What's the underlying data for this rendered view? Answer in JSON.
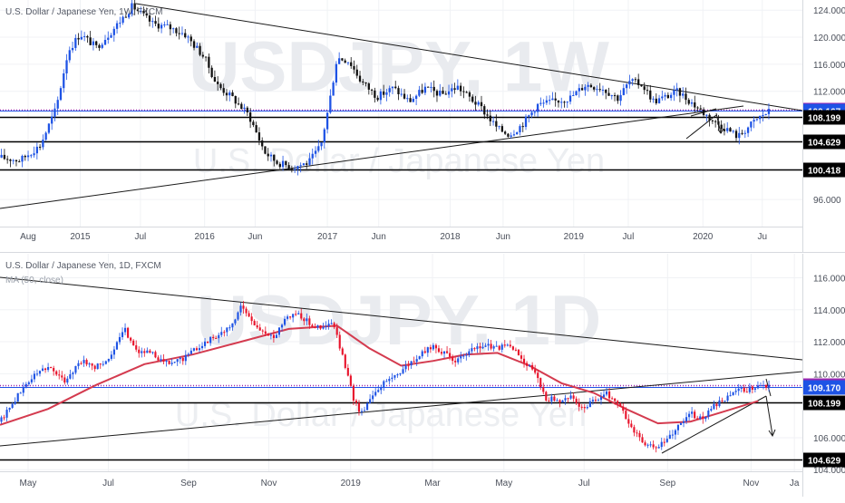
{
  "chart_data": [
    {
      "type": "candlestick",
      "title": "U.S. Dollar / Japanese Yen, 1W, FXCM",
      "watermark_symbol": "USDJPY, 1W",
      "watermark_name": "U.S. Dollar / Japanese Yen",
      "ylim": [
        92,
        125.5
      ],
      "yticks": [
        "124.000",
        "120.000",
        "116.000",
        "112.000",
        "104.629",
        "100.418",
        "96.000"
      ],
      "xticks": [
        "Aug",
        "2015",
        "Jul",
        "2016",
        "Jun",
        "2017",
        "Jun",
        "2018",
        "Jun",
        "2019",
        "Jul",
        "2020",
        "Ju"
      ],
      "price_path": [
        [
          0,
          102.2
        ],
        [
          0.025,
          101.8
        ],
        [
          0.05,
          104.0
        ],
        [
          0.07,
          109.5
        ],
        [
          0.085,
          118.0
        ],
        [
          0.1,
          120.5
        ],
        [
          0.12,
          118.5
        ],
        [
          0.14,
          121.0
        ],
        [
          0.165,
          124.6
        ],
        [
          0.19,
          122.0
        ],
        [
          0.21,
          121.5
        ],
        [
          0.23,
          120.5
        ],
        [
          0.255,
          117.0
        ],
        [
          0.27,
          113.0
        ],
        [
          0.29,
          111.0
        ],
        [
          0.31,
          108.5
        ],
        [
          0.33,
          103.0
        ],
        [
          0.345,
          101.5
        ],
        [
          0.365,
          100.8
        ],
        [
          0.385,
          101.5
        ],
        [
          0.4,
          104.0
        ],
        [
          0.41,
          110.0
        ],
        [
          0.42,
          117.0
        ],
        [
          0.435,
          116.5
        ],
        [
          0.45,
          113.5
        ],
        [
          0.47,
          111.2
        ],
        [
          0.49,
          112.5
        ],
        [
          0.51,
          110.5
        ],
        [
          0.53,
          112.5
        ],
        [
          0.55,
          111.5
        ],
        [
          0.57,
          112.7
        ],
        [
          0.6,
          109.5
        ],
        [
          0.62,
          106.5
        ],
        [
          0.635,
          105.6
        ],
        [
          0.65,
          107.0
        ],
        [
          0.67,
          110.0
        ],
        [
          0.69,
          110.5
        ],
        [
          0.71,
          111.0
        ],
        [
          0.73,
          113.0
        ],
        [
          0.75,
          112.5
        ],
        [
          0.77,
          111.0
        ],
        [
          0.785,
          113.5
        ],
        [
          0.8,
          113.0
        ],
        [
          0.815,
          110.5
        ],
        [
          0.83,
          111.2
        ],
        [
          0.845,
          112.0
        ],
        [
          0.86,
          110.5
        ],
        [
          0.875,
          109.0
        ],
        [
          0.89,
          107.5
        ],
        [
          0.905,
          106.5
        ],
        [
          0.92,
          105.3
        ],
        [
          0.935,
          107.0
        ],
        [
          0.95,
          108.5
        ],
        [
          0.96,
          109.1
        ]
      ],
      "price_levels": [
        {
          "value": 109.296,
          "label": "109.296",
          "color": "#9c27b0",
          "style": "dotted"
        },
        {
          "value": 109.167,
          "label": "109.167",
          "color": "#1e53e5",
          "style": "solid"
        },
        {
          "value": 108.199,
          "label": "108.199",
          "color": "#000000",
          "style": "solid"
        },
        {
          "value": 104.629,
          "label": "104.629",
          "color": "#000000",
          "style": "solid"
        },
        {
          "value": 100.418,
          "label": "100.418",
          "color": "#000000",
          "style": "solid"
        }
      ]
    },
    {
      "type": "candlestick",
      "title": "U.S. Dollar / Japanese Yen, 1D, FXCM",
      "indicator": "MA (50, close)",
      "watermark_symbol": "USDJPY, 1D",
      "watermark_name": "U.S. Dollar / Japanese Yen",
      "ylim": [
        103.9,
        117.5
      ],
      "yticks": [
        "116.000",
        "114.000",
        "112.000",
        "110.000",
        "106.000",
        "104.000"
      ],
      "xticks": [
        "May",
        "Jul",
        "Sep",
        "Nov",
        "2019",
        "Mar",
        "May",
        "Jul",
        "Sep",
        "Nov",
        "Ja"
      ],
      "price_path": [
        [
          0,
          107.0
        ],
        [
          0.02,
          108.5
        ],
        [
          0.04,
          109.8
        ],
        [
          0.06,
          110.5
        ],
        [
          0.08,
          109.5
        ],
        [
          0.1,
          110.8
        ],
        [
          0.12,
          110.4
        ],
        [
          0.14,
          111.2
        ],
        [
          0.155,
          112.8
        ],
        [
          0.17,
          111.5
        ],
        [
          0.19,
          111.2
        ],
        [
          0.21,
          110.6
        ],
        [
          0.23,
          111.0
        ],
        [
          0.25,
          111.8
        ],
        [
          0.27,
          112.4
        ],
        [
          0.29,
          113.0
        ],
        [
          0.3,
          114.3
        ],
        [
          0.31,
          113.5
        ],
        [
          0.325,
          112.7
        ],
        [
          0.34,
          112.2
        ],
        [
          0.355,
          113.5
        ],
        [
          0.37,
          113.8
        ],
        [
          0.385,
          113.2
        ],
        [
          0.4,
          112.8
        ],
        [
          0.415,
          113.2
        ],
        [
          0.43,
          110.5
        ],
        [
          0.44,
          108.5
        ],
        [
          0.45,
          107.5
        ],
        [
          0.465,
          108.8
        ],
        [
          0.48,
          109.5
        ],
        [
          0.5,
          110.2
        ],
        [
          0.52,
          111.0
        ],
        [
          0.54,
          111.8
        ],
        [
          0.555,
          111.2
        ],
        [
          0.57,
          110.8
        ],
        [
          0.59,
          111.5
        ],
        [
          0.605,
          111.8
        ],
        [
          0.62,
          111.6
        ],
        [
          0.635,
          111.8
        ],
        [
          0.65,
          111.0
        ],
        [
          0.665,
          110.2
        ],
        [
          0.68,
          108.5
        ],
        [
          0.695,
          108.3
        ],
        [
          0.71,
          108.6
        ],
        [
          0.725,
          107.8
        ],
        [
          0.74,
          108.3
        ],
        [
          0.755,
          108.8
        ],
        [
          0.77,
          108.2
        ],
        [
          0.785,
          106.8
        ],
        [
          0.8,
          105.8
        ],
        [
          0.815,
          105.3
        ],
        [
          0.83,
          105.8
        ],
        [
          0.845,
          106.8
        ],
        [
          0.86,
          107.5
        ],
        [
          0.875,
          107.2
        ],
        [
          0.89,
          108.0
        ],
        [
          0.905,
          108.4
        ],
        [
          0.915,
          108.9
        ],
        [
          0.93,
          109.0
        ],
        [
          0.945,
          109.3
        ]
      ],
      "ma_path": [
        [
          0,
          106.8
        ],
        [
          0.06,
          107.8
        ],
        [
          0.12,
          109.3
        ],
        [
          0.18,
          110.6
        ],
        [
          0.24,
          111.2
        ],
        [
          0.3,
          112.0
        ],
        [
          0.36,
          112.8
        ],
        [
          0.42,
          113.0
        ],
        [
          0.46,
          111.6
        ],
        [
          0.5,
          110.5
        ],
        [
          0.54,
          110.8
        ],
        [
          0.58,
          111.2
        ],
        [
          0.62,
          111.3
        ],
        [
          0.66,
          110.5
        ],
        [
          0.7,
          109.4
        ],
        [
          0.74,
          108.8
        ],
        [
          0.78,
          107.8
        ],
        [
          0.82,
          106.9
        ],
        [
          0.86,
          107.0
        ],
        [
          0.9,
          107.6
        ],
        [
          0.945,
          108.3
        ]
      ],
      "price_levels": [
        {
          "value": 109.296,
          "label": "109.296",
          "color": "#9c27b0",
          "style": "dotted"
        },
        {
          "value": 109.17,
          "label": "109.170",
          "color": "#1e53e5",
          "style": "solid"
        },
        {
          "value": 108.199,
          "label": "108.199",
          "color": "#000000",
          "style": "solid"
        },
        {
          "value": 104.629,
          "label": "104.629",
          "color": "#000000",
          "style": "solid"
        }
      ]
    }
  ]
}
